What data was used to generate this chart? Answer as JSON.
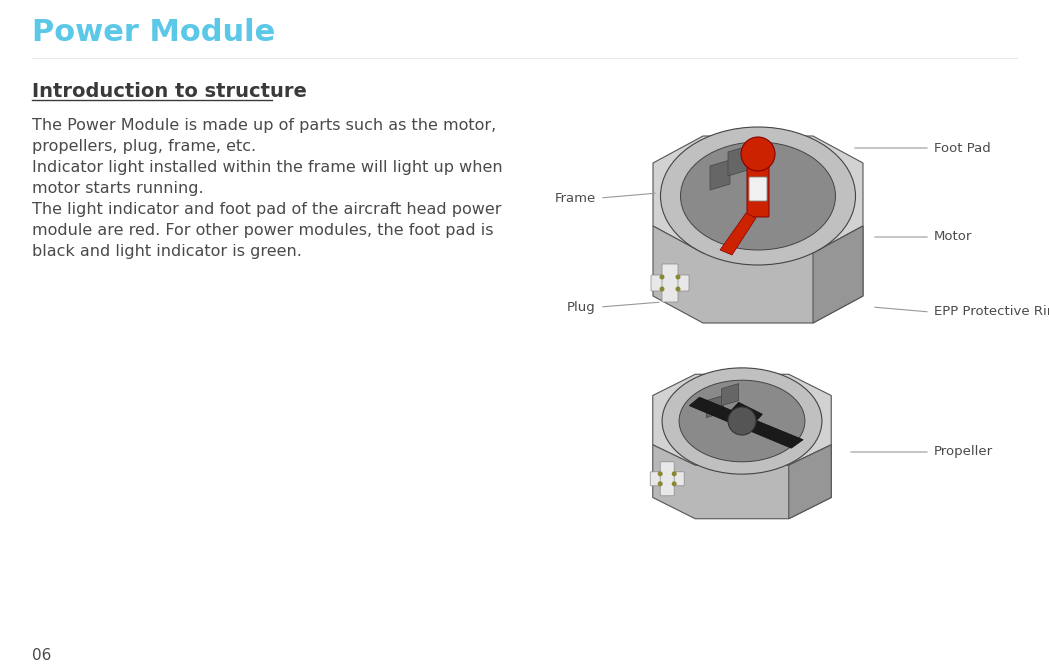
{
  "title": "Power Module",
  "title_color": "#5BC8E8",
  "title_fontsize": 22,
  "section_title": "Introduction to structure",
  "section_title_color": "#3a3a3a",
  "section_title_fontsize": 14,
  "body_lines": [
    "The Power Module is made up of parts such as the motor,",
    "propellers, plug, frame, etc.",
    "Indicator light installed within the frame will light up when",
    "motor starts running.",
    "The light indicator and foot pad of the aircraft head power",
    "module are red. For other power modules, the foot pad is",
    "black and light indicator is green."
  ],
  "body_color": "#4a4a4a",
  "body_fontsize": 11.5,
  "page_number": "06",
  "background_color": "#ffffff",
  "label_color": "#4a4a4a",
  "label_fontsize": 9.5,
  "line_color": "#999999",
  "body_light": "#d2d2d2",
  "body_mid": "#b8b8b8",
  "body_dark": "#969696",
  "ring_outer": "#c0c0c0",
  "ring_inner": "#8a8a8a",
  "red_color": "#cc2200",
  "plug_color": "#e8e8e8",
  "blade_color": "#1a1a1a",
  "hub_color": "#555555",
  "edge_color": "#555555"
}
